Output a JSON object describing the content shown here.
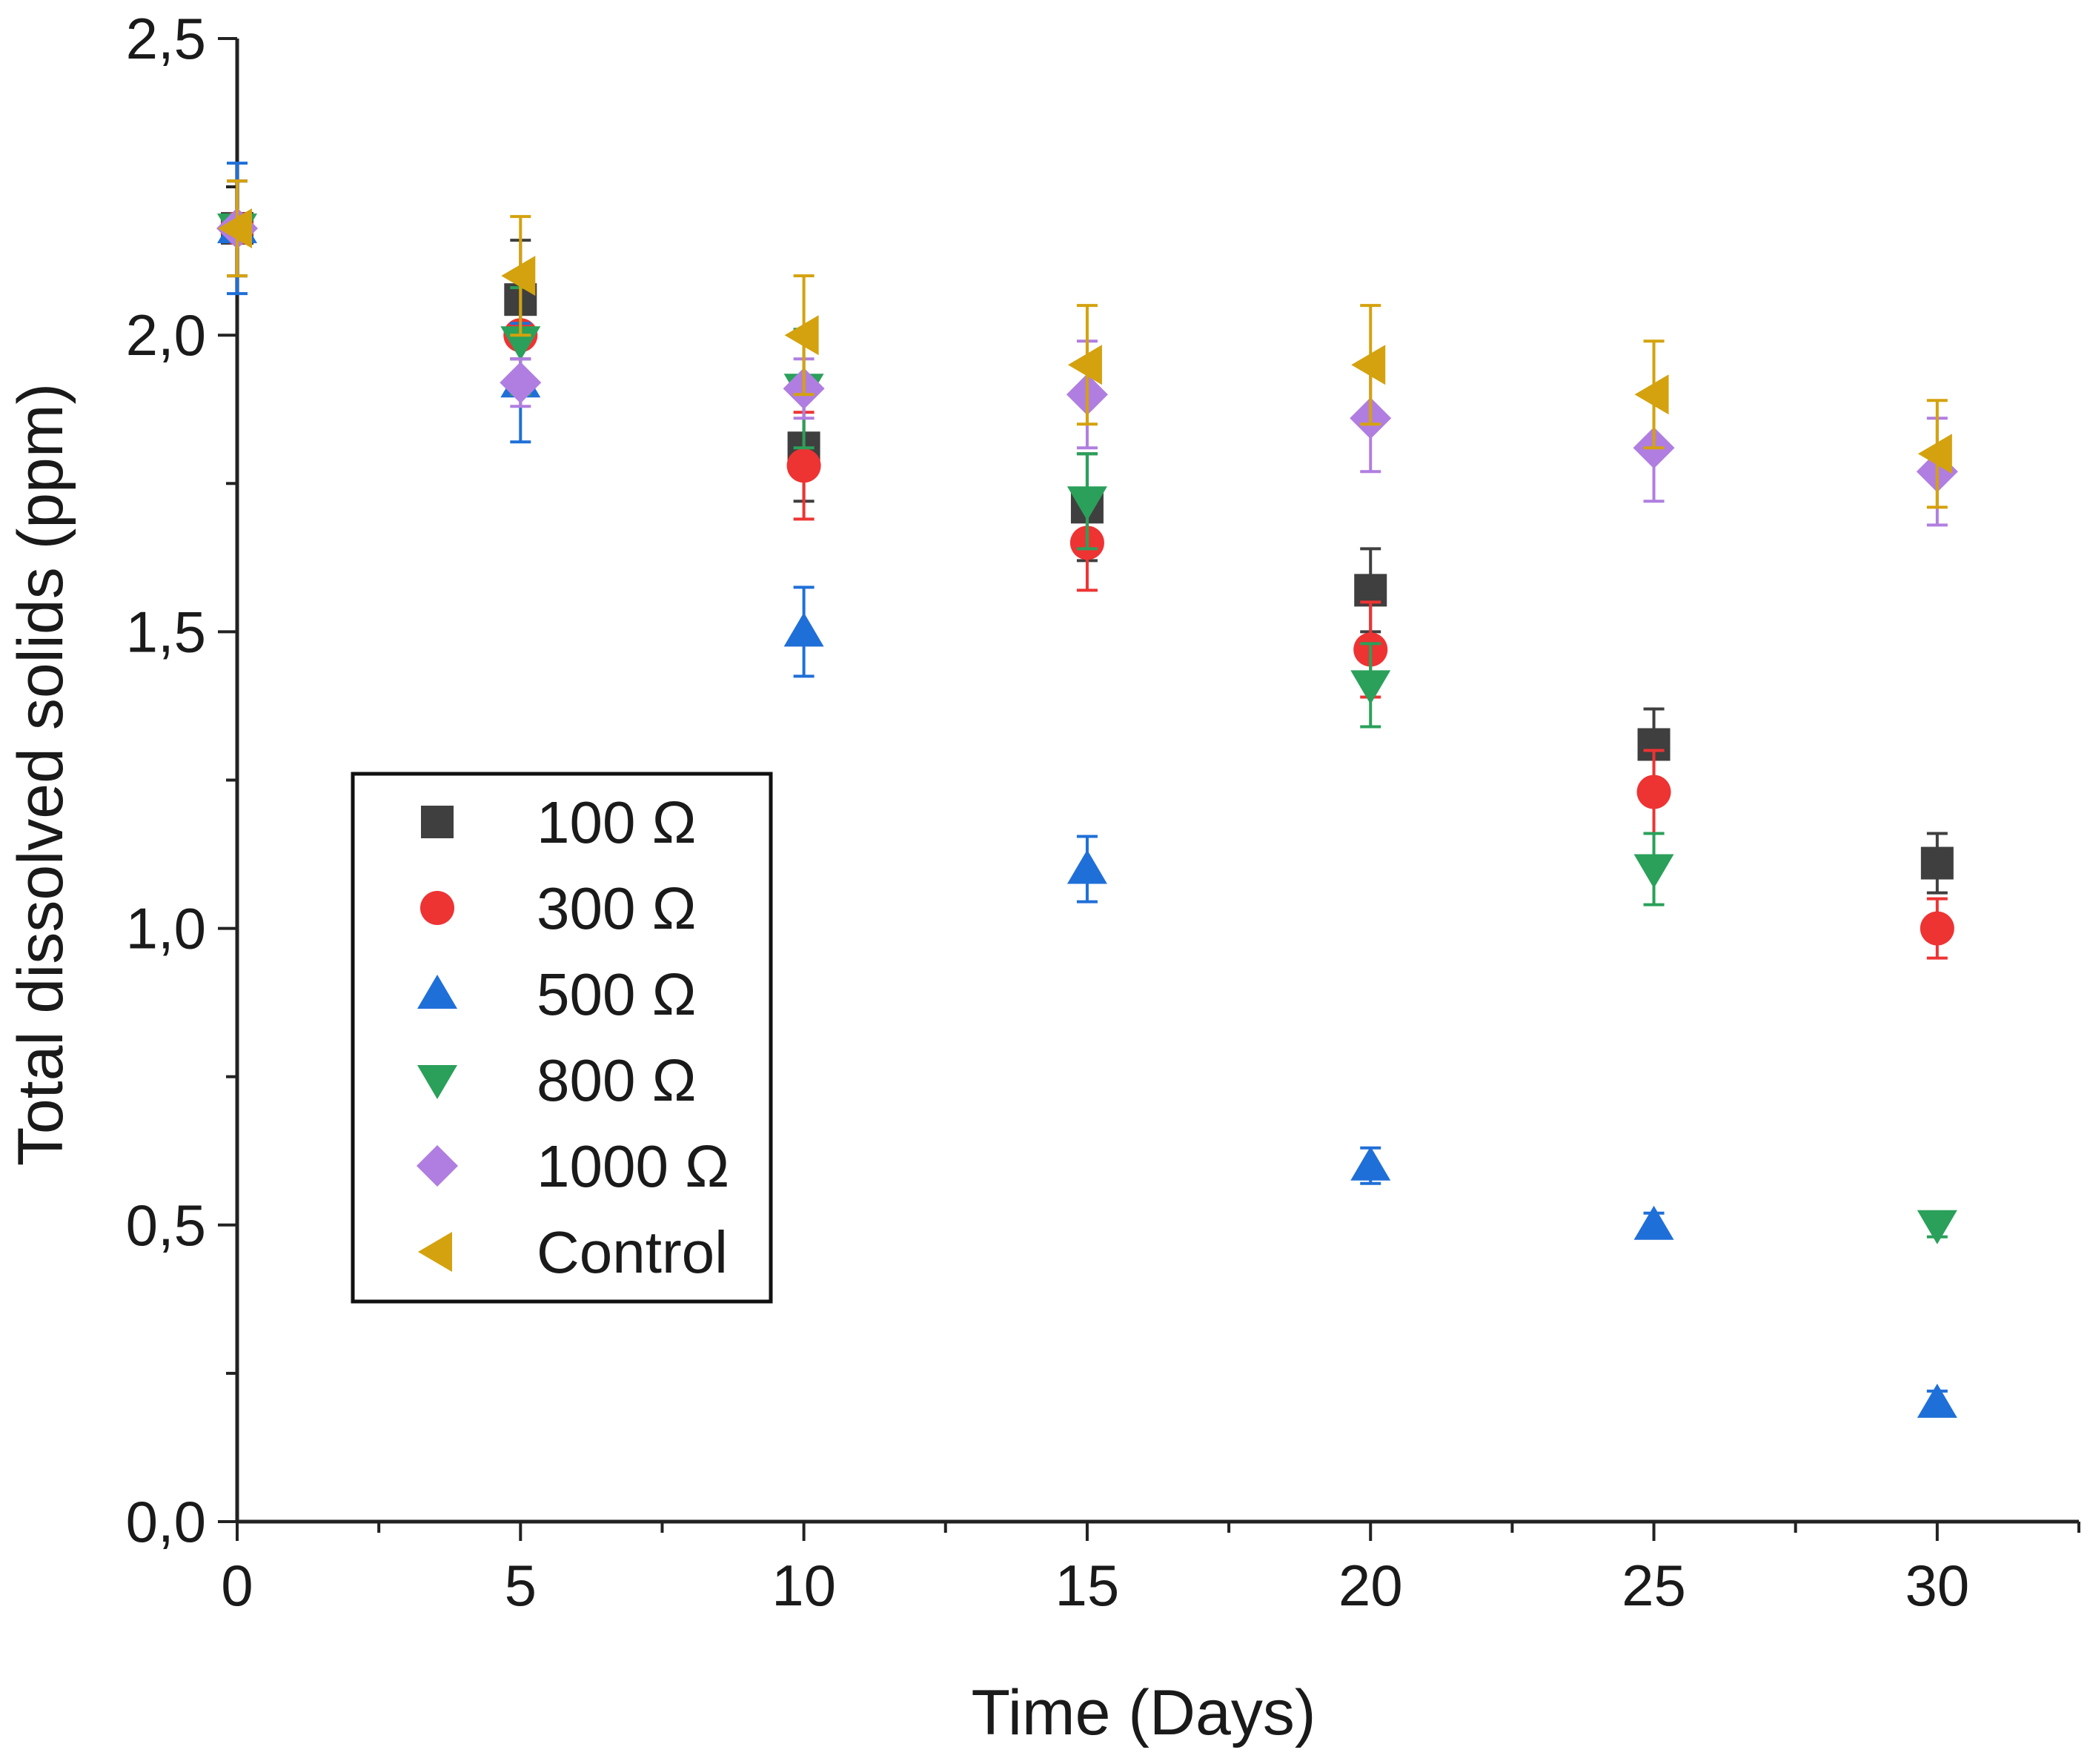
{
  "chart_data": {
    "type": "scatter",
    "title": "",
    "xlabel": "Time (Days)",
    "ylabel": "Total dissolved solids (ppm)",
    "xlim": [
      0,
      32.5
    ],
    "ylim": [
      0,
      2.5
    ],
    "x_ticks": [
      0,
      5,
      10,
      15,
      20,
      25,
      30
    ],
    "x_tick_labels": [
      "0",
      "5",
      "10",
      "15",
      "20",
      "25",
      "30"
    ],
    "x_minor_ticks": [
      2.5,
      7.5,
      12.5,
      17.5,
      22.5,
      27.5,
      32.5
    ],
    "y_ticks": [
      0,
      0.5,
      1.0,
      1.5,
      2.0,
      2.5
    ],
    "y_tick_labels": [
      "0,0",
      "0,5",
      "1,0",
      "1,5",
      "2,0",
      "2,5"
    ],
    "y_minor_ticks": [
      0.25,
      0.75,
      1.25,
      1.75,
      2.25
    ],
    "grid": false,
    "legend_position": "left-middle",
    "series": [
      {
        "name": "100 Ω",
        "marker": "square",
        "color": "#3f3f3f",
        "x": [
          0,
          5,
          10,
          15,
          20,
          25,
          30
        ],
        "y": [
          2.18,
          2.06,
          1.81,
          1.71,
          1.57,
          1.31,
          1.11
        ],
        "err": [
          0.08,
          0.1,
          0.09,
          0.09,
          0.07,
          0.06,
          0.05
        ]
      },
      {
        "name": "300 Ω",
        "marker": "circle",
        "color": "#ee3333",
        "x": [
          0,
          5,
          10,
          15,
          20,
          25,
          30
        ],
        "y": [
          2.18,
          2.0,
          1.78,
          1.65,
          1.47,
          1.23,
          1.0
        ],
        "err": [
          0.08,
          0.1,
          0.09,
          0.08,
          0.08,
          0.07,
          0.05
        ]
      },
      {
        "name": "500 Ω",
        "marker": "triangle-up",
        "color": "#1f6fd8",
        "x": [
          0,
          5,
          10,
          15,
          20,
          25,
          30
        ],
        "y": [
          2.18,
          1.92,
          1.5,
          1.1,
          0.6,
          0.5,
          0.2
        ],
        "err": [
          0.11,
          0.1,
          0.075,
          0.055,
          0.03,
          0.02,
          0.02
        ]
      },
      {
        "name": "800 Ω",
        "marker": "triangle-down",
        "color": "#2aa05a",
        "x": [
          0,
          5,
          10,
          15,
          20,
          25,
          30
        ],
        "y": [
          2.18,
          1.99,
          1.91,
          1.72,
          1.41,
          1.1,
          0.5
        ],
        "err": [
          0.08,
          0.09,
          0.1,
          0.08,
          0.07,
          0.06,
          0.02
        ]
      },
      {
        "name": "1000 Ω",
        "marker": "diamond",
        "color": "#b07ee0",
        "x": [
          0,
          5,
          10,
          15,
          20,
          25,
          30
        ],
        "y": [
          2.18,
          1.92,
          1.91,
          1.9,
          1.86,
          1.81,
          1.77
        ],
        "err": [
          0.08,
          0.04,
          0.05,
          0.09,
          0.09,
          0.09,
          0.09
        ]
      },
      {
        "name": "Control",
        "marker": "triangle-left",
        "color": "#d4a20e",
        "x": [
          0,
          5,
          10,
          15,
          20,
          25,
          30
        ],
        "y": [
          2.18,
          2.1,
          2.0,
          1.95,
          1.95,
          1.9,
          1.8
        ],
        "err": [
          0.08,
          0.1,
          0.1,
          0.1,
          0.1,
          0.09,
          0.09
        ]
      }
    ]
  }
}
